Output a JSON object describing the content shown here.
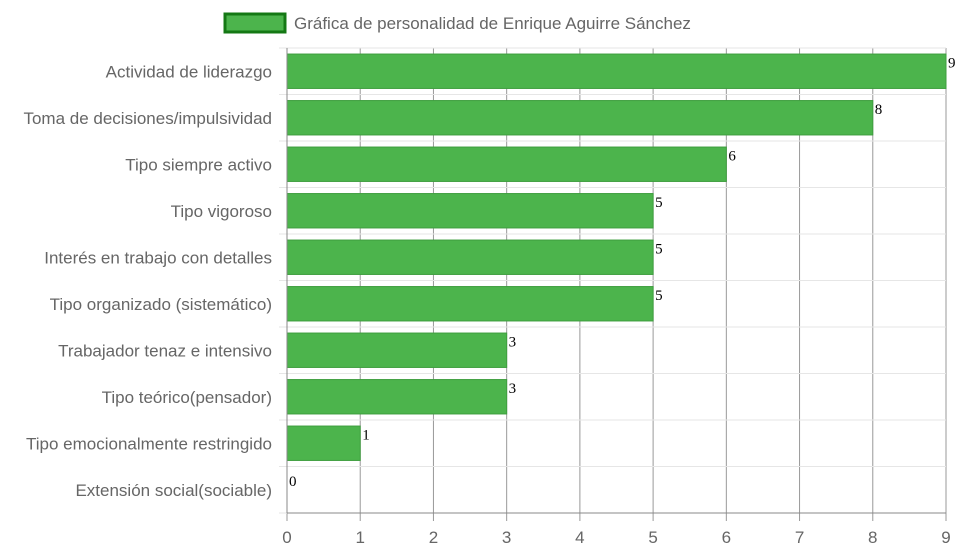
{
  "chart_data": {
    "type": "bar",
    "orientation": "horizontal",
    "categories": [
      "Actividad de liderazgo",
      "Toma de decisiones/impulsividad",
      "Tipo siempre activo",
      "Tipo vigoroso",
      "Interés en trabajo con detalles",
      "Tipo organizado (sistemático)",
      "Trabajador tenaz e intensivo",
      "Tipo teórico(pensador)",
      "Tipo emocionalmente restringido",
      "Extensión social(sociable)"
    ],
    "series": [
      {
        "name": "Gráfica de personalidad de Enrique Aguirre Sánchez",
        "values": [
          9,
          8,
          6,
          5,
          5,
          5,
          3,
          3,
          1,
          0
        ]
      }
    ],
    "xlim": [
      0,
      9
    ],
    "xticks": [
      0,
      1,
      2,
      3,
      4,
      5,
      6,
      7,
      8,
      9
    ],
    "grid": true,
    "legend_position": "top",
    "data_labels": true,
    "colors": {
      "bar_fill": "#4cb44c",
      "bar_border": "#3e9e3e",
      "legend_fill": "#4cb44c",
      "legend_border": "#147814",
      "grid_vertical": "#999999",
      "grid_horizontal": "#e6e6e6",
      "axis": "#888888",
      "text": "#666666"
    }
  }
}
